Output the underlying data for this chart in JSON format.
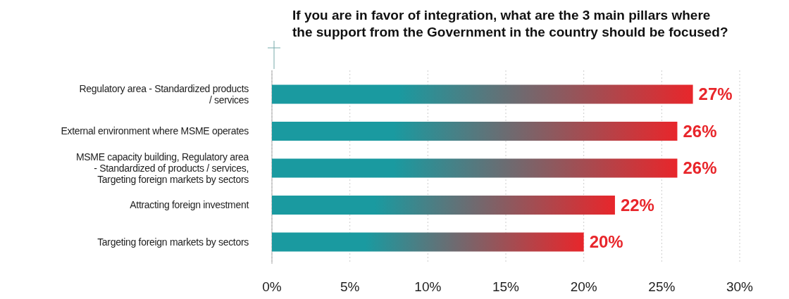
{
  "chart_data": {
    "type": "bar",
    "orientation": "horizontal",
    "title": "If you are in favor of integration, what are the 3 main pillars where the support from the Government in the country should be focused?",
    "categories": [
      "Regulatory area - Standardized products / services",
      "External environment where MSME operates",
      "MSME capacity building, Regulatory area - Standardized of products / services, Targeting foreign markets by sectors",
      "Attracting foreign investment",
      "Targeting foreign markets by sectors"
    ],
    "values": [
      27,
      26,
      26,
      22,
      20
    ],
    "color": "#1a9aa0",
    "value_labels": [
      "27%",
      "26%",
      "26%",
      "22%",
      "20%"
    ],
    "xlim": [
      0,
      30
    ],
    "xticks": [
      {
        "value": 0,
        "label": "0%"
      },
      {
        "value": 5,
        "label": "5%"
      },
      {
        "value": 10,
        "label": "10%"
      },
      {
        "value": 15,
        "label": "15%"
      },
      {
        "value": 20,
        "label": "20%"
      },
      {
        "value": 25,
        "label": "25%"
      },
      {
        "value": 30,
        "label": "30%"
      }
    ],
    "grid": "x"
  }
}
